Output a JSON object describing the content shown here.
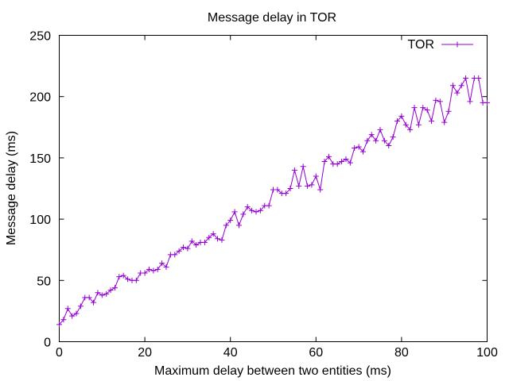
{
  "chart_data": {
    "type": "line",
    "title": "Message delay in TOR",
    "xlabel": "Maximum delay between two entities (ms)",
    "ylabel": "Message delay (ms)",
    "xlim": [
      0,
      100
    ],
    "ylim": [
      0,
      250
    ],
    "xticks": [
      0,
      20,
      40,
      60,
      80,
      100
    ],
    "yticks": [
      0,
      50,
      100,
      150,
      200,
      250
    ],
    "grid": false,
    "legend": "top-right",
    "color": "#9400d3",
    "series": [
      {
        "name": "TOR",
        "x": [
          0,
          1,
          2,
          3,
          4,
          5,
          6,
          7,
          8,
          9,
          10,
          11,
          12,
          13,
          14,
          15,
          16,
          17,
          18,
          19,
          20,
          21,
          22,
          23,
          24,
          25,
          26,
          27,
          28,
          29,
          30,
          31,
          32,
          33,
          34,
          35,
          36,
          37,
          38,
          39,
          40,
          41,
          42,
          43,
          44,
          45,
          46,
          47,
          48,
          49,
          50,
          51,
          52,
          53,
          54,
          55,
          56,
          57,
          58,
          59,
          60,
          61,
          62,
          63,
          64,
          65,
          66,
          67,
          68,
          69,
          70,
          71,
          72,
          73,
          74,
          75,
          76,
          77,
          78,
          79,
          80,
          81,
          82,
          83,
          84,
          85,
          86,
          87,
          88,
          89,
          90,
          91,
          92,
          93,
          94,
          95,
          96,
          97,
          98,
          99,
          100
        ],
        "y": [
          14,
          18,
          27,
          21,
          23,
          29,
          36,
          36,
          32,
          40,
          38,
          39,
          42,
          44,
          53,
          54,
          51,
          50,
          50,
          56,
          56,
          59,
          58,
          59,
          64,
          61,
          71,
          71,
          74,
          77,
          76,
          82,
          79,
          81,
          81,
          85,
          88,
          84,
          83,
          95,
          99,
          106,
          95,
          104,
          110,
          107,
          106,
          107,
          111,
          111,
          124,
          124,
          121,
          121,
          125,
          140,
          127,
          143,
          127,
          128,
          135,
          124,
          147,
          151,
          145,
          145,
          147,
          149,
          146,
          158,
          159,
          155,
          164,
          169,
          164,
          173,
          164,
          160,
          167,
          180,
          184,
          177,
          173,
          191,
          177,
          191,
          189,
          180,
          197,
          196,
          179,
          188,
          209,
          203,
          209,
          215,
          196,
          215,
          215,
          195,
          195
        ]
      }
    ]
  }
}
